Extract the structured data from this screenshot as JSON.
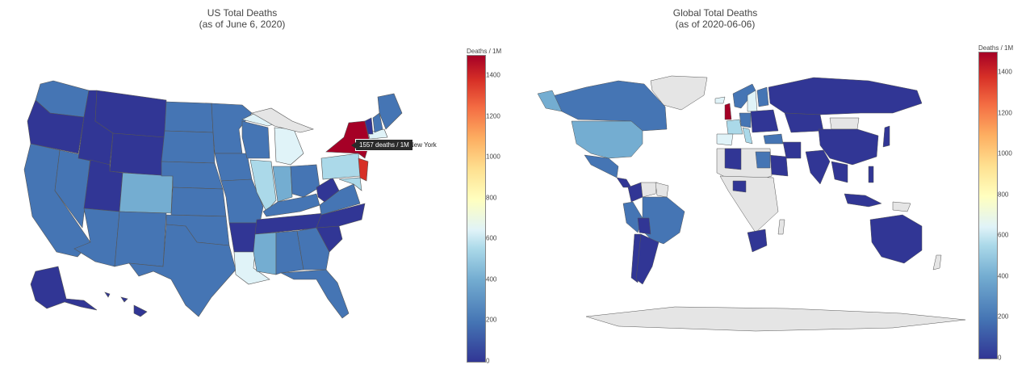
{
  "us_map": {
    "title": "US Total Deaths",
    "subtitle": "(as of June 6, 2020)",
    "colorbar": {
      "title": "Deaths / 1M",
      "min": 0,
      "max": 1500,
      "ticks": [
        "0",
        "200",
        "400",
        "600",
        "800",
        "1000",
        "1200",
        "1400"
      ],
      "tick_values": [
        0,
        200,
        400,
        600,
        800,
        1000,
        1200,
        1400
      ]
    },
    "hover": {
      "value_text": "1557 deaths / 1M",
      "name": "New York"
    }
  },
  "world_map": {
    "title": "Global Total Deaths",
    "subtitle": "(as of 2020-06-06)",
    "colorbar": {
      "title": "Deaths / 1M",
      "min": 0,
      "max": 1500,
      "ticks": [
        "0",
        "200",
        "400",
        "600",
        "800",
        "1000",
        "1200",
        "1400"
      ],
      "tick_values": [
        0,
        200,
        400,
        600,
        800,
        1000,
        1200,
        1400
      ]
    }
  },
  "colors": {
    "very_low": "#313695",
    "low": "#4575b4",
    "mid_low": "#74add1",
    "mid": "#e0f3f8",
    "high": "#f46d43",
    "very_high": "#a50026",
    "no_data": "#e5e5e5"
  }
}
